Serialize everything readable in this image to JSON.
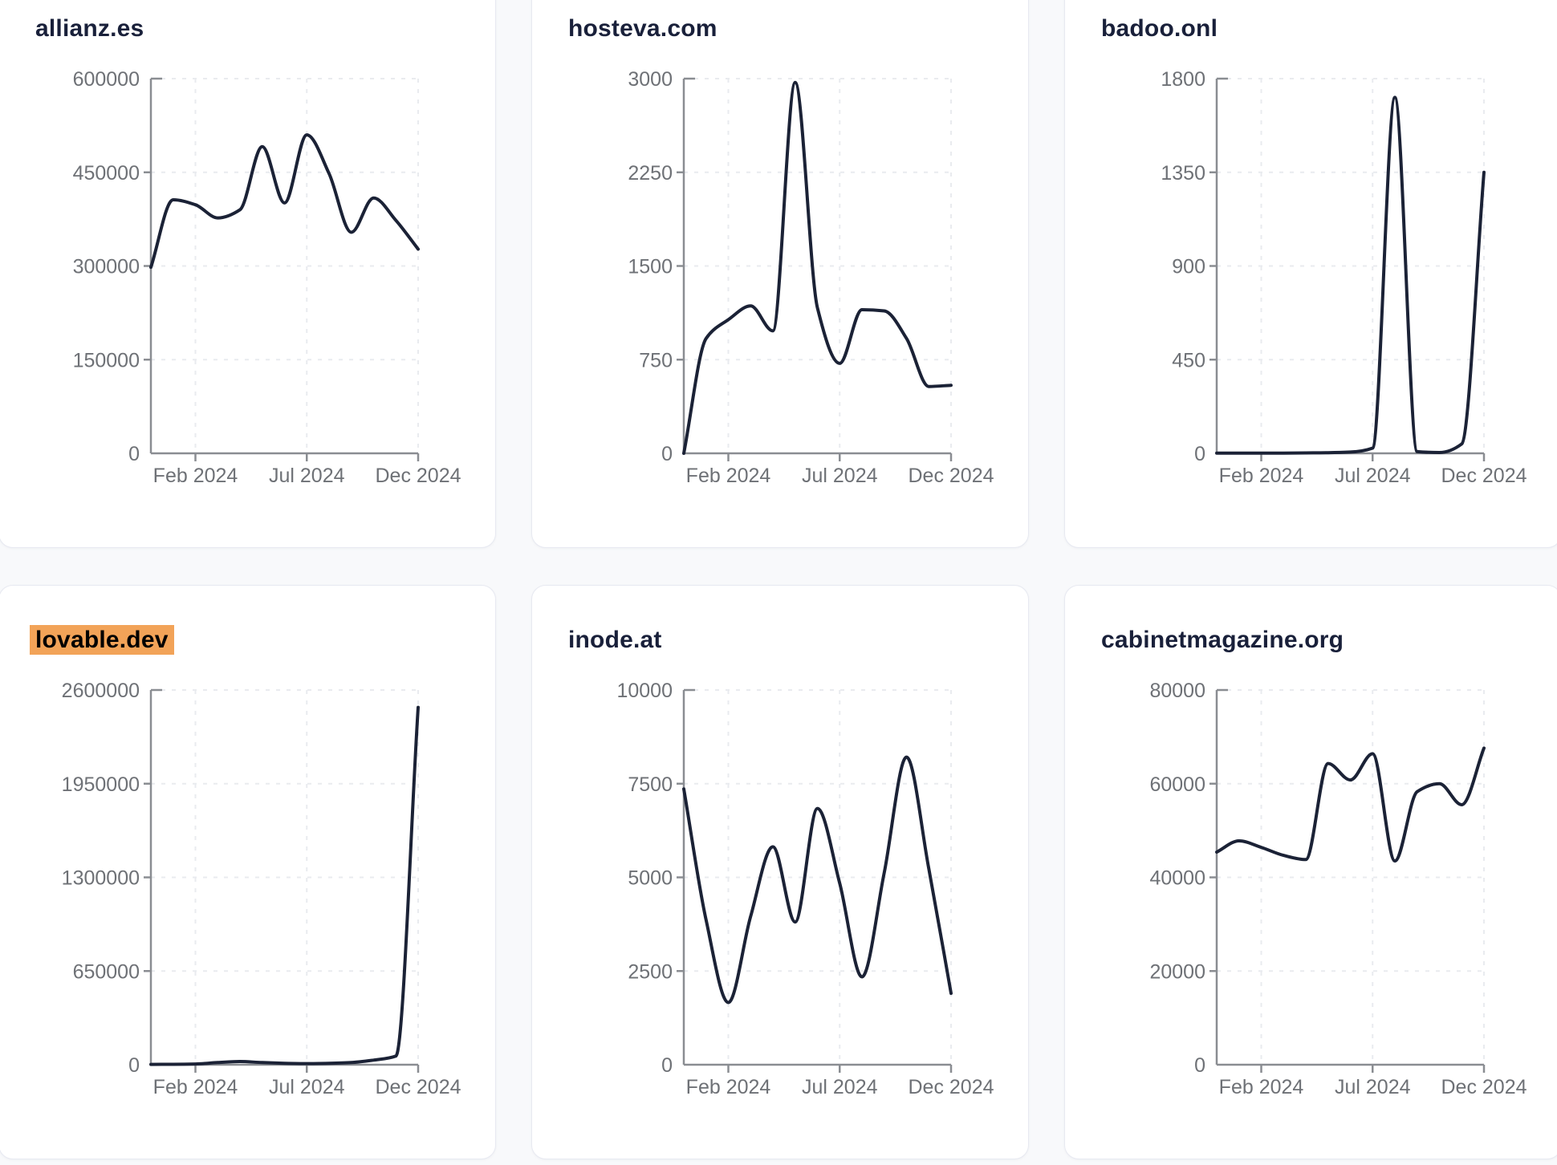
{
  "page": {
    "background_color": "#f8f9fb",
    "card_color": "#ffffff",
    "title_color": "#19203a",
    "highlight_color": "#f2a358",
    "line_color": "#1b2236",
    "axis_color": "#8a8d92",
    "grid_color": "#e9ebef",
    "tick_label_color": "#6e7176"
  },
  "cards": [
    {
      "title": "allianz.es",
      "highlighted": false
    },
    {
      "title": "hosteva.com",
      "highlighted": false
    },
    {
      "title": "badoo.onl",
      "highlighted": false
    },
    {
      "title": "lovable.dev",
      "highlighted": true
    },
    {
      "title": "inode.at",
      "highlighted": false
    },
    {
      "title": "cabinetmagazine.org",
      "highlighted": false
    }
  ],
  "chart_data": [
    {
      "type": "line",
      "title": "allianz.es",
      "x_tick_labels": [
        "Feb 2024",
        "Jul 2024",
        "Dec 2024"
      ],
      "x_tick_indices": [
        2,
        7,
        12
      ],
      "n_points": 13,
      "values": [
        298000,
        406000,
        398000,
        377000,
        390000,
        491000,
        401000,
        510000,
        448000,
        354000,
        409000,
        373000,
        327000
      ],
      "y_ticks": [
        0,
        150000,
        300000,
        450000,
        600000
      ],
      "ylim": [
        0,
        600000
      ],
      "grid": "dashed",
      "legend": false
    },
    {
      "type": "line",
      "title": "hosteva.com",
      "x_tick_labels": [
        "Feb 2024",
        "Jul 2024",
        "Dec 2024"
      ],
      "x_tick_indices": [
        2,
        7,
        12
      ],
      "n_points": 13,
      "values": [
        0,
        920,
        1070,
        1180,
        980,
        2970,
        1165,
        720,
        1150,
        1140,
        920,
        535,
        545
      ],
      "y_ticks": [
        0,
        750,
        1500,
        2250,
        3000
      ],
      "ylim": [
        0,
        3000
      ],
      "grid": "dashed",
      "legend": false
    },
    {
      "type": "line",
      "title": "badoo.onl",
      "x_tick_labels": [
        "Feb 2024",
        "Jul 2024",
        "Dec 2024"
      ],
      "x_tick_indices": [
        2,
        7,
        12
      ],
      "n_points": 13,
      "values": [
        1,
        1,
        1,
        1,
        2,
        3,
        6,
        25,
        1710,
        8,
        4,
        45,
        1350
      ],
      "y_ticks": [
        0,
        450,
        900,
        1350,
        1800
      ],
      "ylim": [
        0,
        1800
      ],
      "grid": "dashed",
      "legend": false
    },
    {
      "type": "line",
      "title": "lovable.dev",
      "x_tick_labels": [
        "Feb 2024",
        "Jul 2024",
        "Dec 2024"
      ],
      "x_tick_indices": [
        2,
        7,
        12
      ],
      "n_points": 13,
      "values": [
        2000,
        3000,
        5000,
        15000,
        22000,
        15000,
        10000,
        8000,
        10000,
        15000,
        32000,
        60000,
        2480000
      ],
      "y_ticks": [
        0,
        650000,
        1300000,
        1950000,
        2600000
      ],
      "ylim": [
        0,
        2600000
      ],
      "grid": "dashed",
      "legend": false
    },
    {
      "type": "line",
      "title": "inode.at",
      "x_tick_labels": [
        "Feb 2024",
        "Jul 2024",
        "Dec 2024"
      ],
      "x_tick_indices": [
        2,
        7,
        12
      ],
      "n_points": 13,
      "values": [
        7360,
        3860,
        1660,
        3960,
        5815,
        3810,
        6840,
        4840,
        2345,
        5130,
        8210,
        5230,
        1905
      ],
      "y_ticks": [
        0,
        2500,
        5000,
        7500,
        10000
      ],
      "ylim": [
        0,
        10000
      ],
      "grid": "dashed",
      "legend": false
    },
    {
      "type": "line",
      "title": "cabinetmagazine.org",
      "x_tick_labels": [
        "Feb 2024",
        "Jul 2024",
        "Dec 2024"
      ],
      "x_tick_indices": [
        2,
        7,
        12
      ],
      "n_points": 13,
      "values": [
        45400,
        47800,
        46400,
        44700,
        43800,
        64300,
        60800,
        66400,
        43500,
        58300,
        60000,
        55500,
        67600
      ],
      "y_ticks": [
        0,
        20000,
        40000,
        60000,
        80000
      ],
      "ylim": [
        0,
        80000
      ],
      "grid": "dashed",
      "legend": false
    }
  ]
}
